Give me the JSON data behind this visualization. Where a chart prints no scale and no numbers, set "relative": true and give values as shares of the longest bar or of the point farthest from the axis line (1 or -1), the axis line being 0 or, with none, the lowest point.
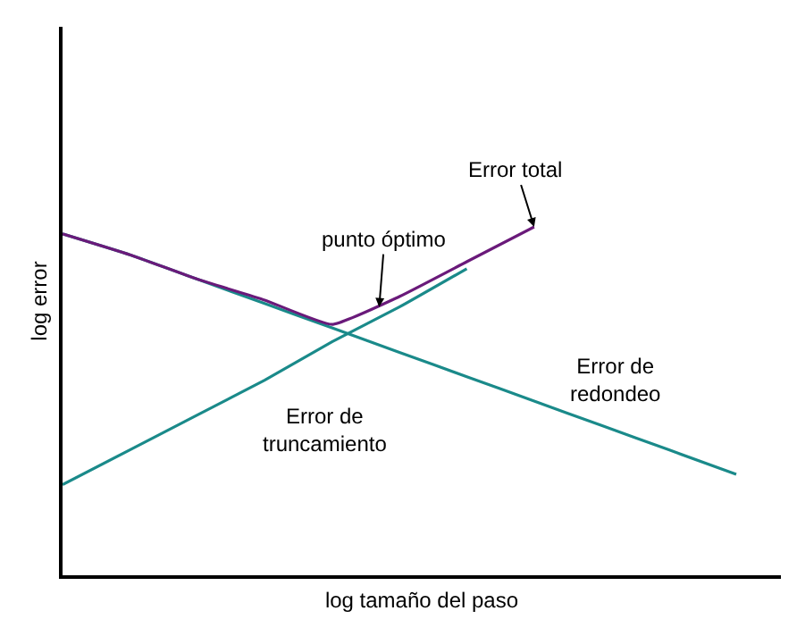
{
  "chart_data": {
    "type": "line",
    "relative": true,
    "xlabel": "log tamaño del paso",
    "ylabel": "log error",
    "categories": [
      null,
      null,
      null,
      null,
      null,
      null,
      null,
      null,
      null,
      null,
      null
    ],
    "series": [
      {
        "name": "Error de redondeo",
        "color": "#1a8a8a",
        "values": [
          0.98,
          0.92,
          0.85,
          0.78,
          0.71,
          0.64,
          0.57,
          0.5,
          0.43,
          0.36,
          0.29
        ]
      },
      {
        "name": "Error de truncamiento",
        "color": "#1a8a8a",
        "values": [
          0.26,
          0.36,
          0.46,
          0.56,
          0.67,
          0.77,
          0.88,
          null,
          null,
          null,
          null
        ]
      },
      {
        "name": "Error total",
        "color": "#6a1a7a",
        "values": [
          0.98,
          0.92,
          0.85,
          0.79,
          0.72,
          0.8,
          0.9,
          1.0,
          null,
          null,
          null
        ]
      }
    ],
    "annotations": [
      "punto óptimo"
    ],
    "legend": false,
    "marker": "none",
    "line_style": "solid"
  }
}
